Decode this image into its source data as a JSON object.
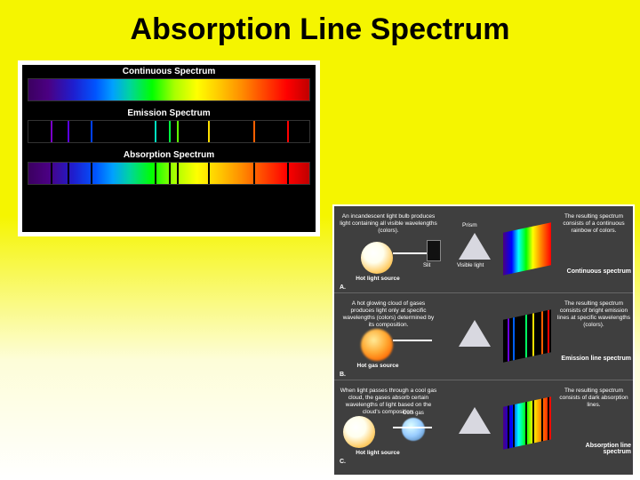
{
  "title": "Absorption Line Spectrum",
  "left_panel": {
    "continuous": {
      "label": "Continuous Spectrum"
    },
    "emission": {
      "label": "Emission Spectrum",
      "lines": [
        {
          "pos": 8,
          "color": "#7a00c8"
        },
        {
          "pos": 14,
          "color": "#5a00e0"
        },
        {
          "pos": 22,
          "color": "#0040ff"
        },
        {
          "pos": 45,
          "color": "#00e0c0"
        },
        {
          "pos": 50,
          "color": "#00ff40"
        },
        {
          "pos": 53,
          "color": "#60ff00"
        },
        {
          "pos": 64,
          "color": "#ffe000"
        },
        {
          "pos": 80,
          "color": "#ff6000"
        },
        {
          "pos": 92,
          "color": "#ff0000"
        }
      ]
    },
    "absorption": {
      "label": "Absorption Spectrum",
      "lines": [
        {
          "pos": 8
        },
        {
          "pos": 14
        },
        {
          "pos": 22
        },
        {
          "pos": 45
        },
        {
          "pos": 50
        },
        {
          "pos": 53
        },
        {
          "pos": 64
        },
        {
          "pos": 80
        },
        {
          "pos": 92
        }
      ]
    }
  },
  "right_panel": {
    "rows": [
      {
        "id": "A.",
        "src_text": "An incandescent light bulb produces light containing all visible wavelengths (colors).",
        "src_caption": "Hot light source",
        "src_kind": "bulb",
        "show_slit": true,
        "slit_label": "Slit",
        "prism_label": "Prism",
        "visible_light_label": "Visible light",
        "out_kind": "continuous",
        "res_text": "The resulting spectrum consists of a continuous rainbow of colors.",
        "res_caption": "Continuous spectrum"
      },
      {
        "id": "B.",
        "src_text": "A hot glowing cloud of gases produces light only at specific wavelengths (colors) determined by its composition.",
        "src_caption": "Hot gas source",
        "src_kind": "cloud",
        "show_slit": false,
        "out_kind": "emission",
        "emission_lines": [
          {
            "pos": 10,
            "color": "#6a00e0"
          },
          {
            "pos": 20,
            "color": "#0060ff"
          },
          {
            "pos": 46,
            "color": "#00ff60"
          },
          {
            "pos": 62,
            "color": "#ffe000"
          },
          {
            "pos": 80,
            "color": "#ff6000"
          },
          {
            "pos": 92,
            "color": "#ff0000"
          }
        ],
        "res_text": "The resulting spectrum consists of bright emission lines at specific wavelengths (colors).",
        "res_caption": "Emission line spectrum"
      },
      {
        "id": "C.",
        "src_text": "When light passes through a cool gas cloud, the gases absorb certain wavelengths of light based on the cloud's composition.",
        "src_caption": "Hot light source",
        "src_kind": "bulb",
        "show_coolgas": true,
        "coolgas_label": "Cool gas",
        "show_slit": false,
        "out_kind": "absorption",
        "absorption_lines": [
          {
            "pos": 10
          },
          {
            "pos": 20
          },
          {
            "pos": 46
          },
          {
            "pos": 62
          },
          {
            "pos": 80
          },
          {
            "pos": 92
          }
        ],
        "res_text": "The resulting spectrum consists of dark absorption lines.",
        "res_caption": "Absorption line spectrum"
      }
    ]
  }
}
